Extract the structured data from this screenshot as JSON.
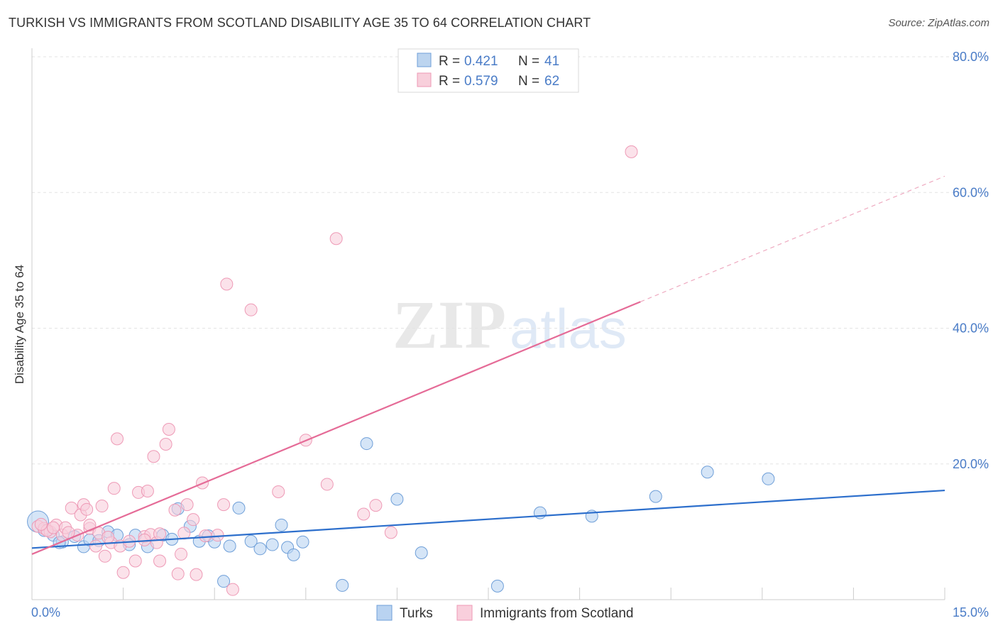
{
  "title": "TURKISH VS IMMIGRANTS FROM SCOTLAND DISABILITY AGE 35 TO 64 CORRELATION CHART",
  "source": "Source: ZipAtlas.com",
  "watermark": {
    "zip": "ZIP",
    "atlas": "atlas"
  },
  "legend": {
    "r_label": "R =",
    "n_label": "N =",
    "rows": [
      {
        "r": "0.421",
        "n": "41",
        "color": "#7aa9e0"
      },
      {
        "r": "0.579",
        "n": "62",
        "color": "#f2a0b8"
      }
    ]
  },
  "chart_data": {
    "type": "scatter",
    "title": "TURKISH VS IMMIGRANTS FROM SCOTLAND DISABILITY AGE 35 TO 64 CORRELATION CHART",
    "xlabel": "",
    "ylabel": "Disability Age 35 to 64",
    "xlim": [
      0,
      15
    ],
    "ylim": [
      0,
      80
    ],
    "x_tick_labels": [
      "0.0%",
      "15.0%"
    ],
    "y_ticks": [
      20,
      40,
      60,
      80
    ],
    "y_tick_labels": [
      "20.0%",
      "40.0%",
      "60.0%",
      "80.0%"
    ],
    "grid": true,
    "series": [
      {
        "name": "Turks",
        "color": "#4a86d8",
        "points": [
          [
            0.1,
            11.5
          ],
          [
            0.2,
            10.2
          ],
          [
            0.35,
            9.5
          ],
          [
            0.5,
            8.5
          ],
          [
            0.7,
            9.3
          ],
          [
            0.85,
            7.8
          ],
          [
            0.95,
            8.8
          ],
          [
            1.1,
            8.7
          ],
          [
            1.25,
            10.0
          ],
          [
            1.4,
            9.5
          ],
          [
            1.6,
            8.1
          ],
          [
            1.7,
            9.5
          ],
          [
            1.9,
            7.8
          ],
          [
            2.15,
            9.5
          ],
          [
            2.3,
            8.9
          ],
          [
            2.4,
            13.4
          ],
          [
            2.6,
            10.8
          ],
          [
            2.75,
            8.6
          ],
          [
            2.9,
            9.4
          ],
          [
            3.0,
            8.5
          ],
          [
            3.15,
            2.7
          ],
          [
            3.25,
            7.9
          ],
          [
            3.4,
            13.5
          ],
          [
            3.6,
            8.6
          ],
          [
            3.75,
            7.5
          ],
          [
            3.95,
            8.1
          ],
          [
            4.1,
            11.0
          ],
          [
            4.2,
            7.7
          ],
          [
            4.3,
            6.6
          ],
          [
            4.45,
            8.5
          ],
          [
            5.1,
            2.1
          ],
          [
            5.5,
            23.0
          ],
          [
            6.0,
            14.8
          ],
          [
            6.4,
            6.9
          ],
          [
            7.65,
            2.0
          ],
          [
            8.35,
            12.8
          ],
          [
            9.2,
            12.3
          ],
          [
            10.25,
            15.2
          ],
          [
            11.1,
            18.8
          ],
          [
            12.1,
            17.8
          ],
          [
            0.45,
            8.4
          ]
        ],
        "trend": {
          "x": [
            0.0,
            15.0
          ],
          "y": [
            7.6,
            16.1
          ]
        }
      },
      {
        "name": "Immigrants from Scotland",
        "color": "#f08db0",
        "points": [
          [
            0.1,
            10.8
          ],
          [
            0.2,
            10.5
          ],
          [
            0.3,
            10.0
          ],
          [
            0.4,
            11.0
          ],
          [
            0.5,
            9.5
          ],
          [
            0.55,
            10.6
          ],
          [
            0.65,
            13.5
          ],
          [
            0.75,
            9.5
          ],
          [
            0.8,
            12.5
          ],
          [
            0.85,
            14.0
          ],
          [
            0.9,
            13.3
          ],
          [
            0.95,
            10.5
          ],
          [
            1.05,
            7.9
          ],
          [
            1.1,
            9.8
          ],
          [
            1.15,
            13.8
          ],
          [
            1.2,
            6.4
          ],
          [
            1.3,
            8.4
          ],
          [
            1.35,
            16.4
          ],
          [
            1.4,
            23.7
          ],
          [
            1.45,
            7.9
          ],
          [
            1.5,
            4.0
          ],
          [
            1.6,
            8.6
          ],
          [
            1.7,
            5.7
          ],
          [
            1.75,
            15.8
          ],
          [
            1.85,
            9.3
          ],
          [
            1.9,
            16.0
          ],
          [
            1.95,
            9.6
          ],
          [
            2.0,
            21.1
          ],
          [
            2.05,
            8.4
          ],
          [
            2.1,
            5.7
          ],
          [
            2.2,
            22.9
          ],
          [
            2.25,
            25.1
          ],
          [
            2.35,
            13.2
          ],
          [
            2.4,
            3.8
          ],
          [
            2.45,
            6.7
          ],
          [
            2.5,
            9.8
          ],
          [
            2.55,
            14.0
          ],
          [
            2.65,
            11.8
          ],
          [
            2.7,
            3.7
          ],
          [
            2.8,
            17.2
          ],
          [
            2.85,
            9.4
          ],
          [
            3.05,
            9.5
          ],
          [
            3.15,
            14.0
          ],
          [
            3.2,
            46.5
          ],
          [
            3.3,
            1.5
          ],
          [
            3.6,
            42.7
          ],
          [
            4.05,
            15.9
          ],
          [
            4.5,
            23.5
          ],
          [
            4.85,
            17.0
          ],
          [
            5.0,
            53.2
          ],
          [
            5.45,
            12.6
          ],
          [
            5.65,
            13.9
          ],
          [
            5.9,
            9.9
          ],
          [
            9.85,
            66.0
          ],
          [
            0.25,
            10.2
          ],
          [
            0.6,
            9.9
          ],
          [
            0.95,
            11.0
          ],
          [
            1.25,
            9.2
          ],
          [
            1.85,
            8.8
          ],
          [
            2.1,
            9.7
          ],
          [
            0.35,
            10.6
          ],
          [
            0.15,
            11.1
          ]
        ],
        "trend": {
          "x": [
            0.0,
            10.0
          ],
          "y": [
            6.7,
            43.9
          ]
        },
        "trend_dashed": {
          "x": [
            10.0,
            15.0
          ],
          "y": [
            43.9,
            62.4
          ]
        }
      }
    ]
  }
}
